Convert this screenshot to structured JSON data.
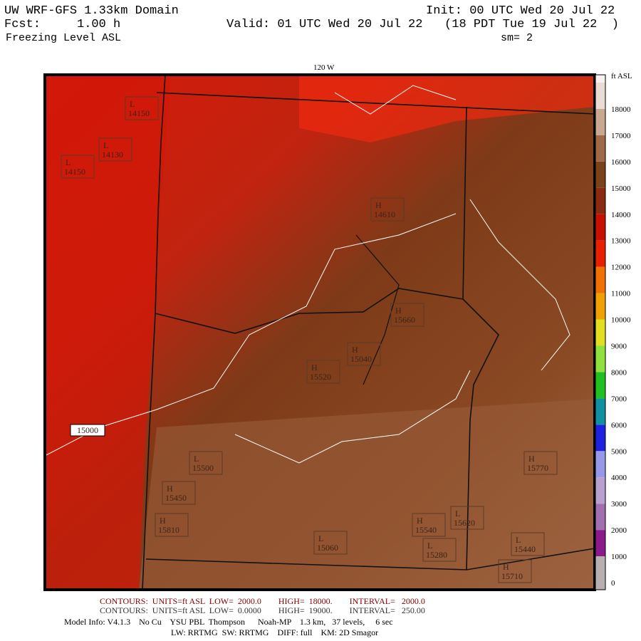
{
  "header": {
    "model": "UW WRF-GFS 1.33km Domain",
    "init": "Init: 00 UTC Wed 20 Jul 22",
    "forecast": "Fcst:     1.00 h",
    "valid": "Valid: 01 UTC Wed 20 Jul 22   (18 PDT Tue 19 Jul 22  )",
    "field": "Freezing Level ASL",
    "smoothing": "sm= 2"
  },
  "map": {
    "longitude_label": "120 W",
    "contour_label": "15000",
    "labels": [
      {
        "kind": "L",
        "value": "14150"
      },
      {
        "kind": "L",
        "value": "14130"
      },
      {
        "kind": "L",
        "value": "14150"
      },
      {
        "kind": "H",
        "value": "14610"
      },
      {
        "kind": "H",
        "value": "15660"
      },
      {
        "kind": "H",
        "value": "15040"
      },
      {
        "kind": "H",
        "value": "15520"
      },
      {
        "kind": "L",
        "value": "15500"
      },
      {
        "kind": "H",
        "value": "15450"
      },
      {
        "kind": "H",
        "value": "15810"
      },
      {
        "kind": "H",
        "value": "15540"
      },
      {
        "kind": "L",
        "value": "15620"
      },
      {
        "kind": "L",
        "value": "15280"
      },
      {
        "kind": "L",
        "value": "15440"
      },
      {
        "kind": "H",
        "value": "15770"
      },
      {
        "kind": "H",
        "value": "15710"
      },
      {
        "kind": "L",
        "value": "15060"
      }
    ]
  },
  "colorbar": {
    "unit": "ft ASL",
    "labels": [
      "0",
      "1000",
      "2000",
      "3000",
      "4000",
      "5000",
      "6000",
      "7000",
      "8000",
      "9000",
      "10000",
      "11000",
      "12000",
      "13000",
      "14000",
      "15000",
      "16000",
      "17000",
      "18000"
    ],
    "colors": [
      "#b8b0b0",
      "#8a1a8a",
      "#a070b0",
      "#b8a0d0",
      "#9898e8",
      "#2020e0",
      "#1090a0",
      "#20c020",
      "#90e040",
      "#e0e020",
      "#f0a000",
      "#f07000",
      "#e82000",
      "#c81000",
      "#8a2a10",
      "#7a4218",
      "#a06a48",
      "#c8a890",
      "#e8dcd4"
    ]
  },
  "footer": {
    "contours_1": "CONTOURS:  UNITS=ft ASL  LOW=  2000.0        HIGH=  18000.        INTERVAL=   2000.0",
    "contours_2": "CONTOURS:  UNITS=ft ASL  LOW=  0.0000        HIGH=  19000.        INTERVAL=   250.00",
    "model_info": "Model Info: V4.1.3    No Cu    YSU PBL  Thompson      Noah-MP    1.3 km,   37 levels,     6 sec",
    "physics": "LW: RRTMG  SW: RRTMG    DIFF: full    KM: 2D Smagor"
  }
}
